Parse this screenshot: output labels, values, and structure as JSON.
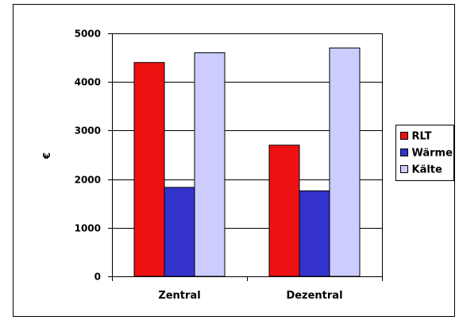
{
  "chart_data": {
    "type": "bar",
    "categories": [
      "Zentral",
      "Dezentral"
    ],
    "series": [
      {
        "name": "RLT",
        "values": [
          4400,
          2700
        ],
        "color": "#ee1111"
      },
      {
        "name": "Wärme",
        "values": [
          1830,
          1760
        ],
        "color": "#3333cc"
      },
      {
        "name": "Kälte",
        "values": [
          4600,
          4700
        ],
        "color": "#ccccff"
      }
    ],
    "title": "",
    "xlabel": "",
    "ylabel": "€",
    "ylim": [
      0,
      5000
    ],
    "yticks": [
      0,
      1000,
      2000,
      3000,
      4000,
      5000
    ],
    "grid": true,
    "legend": "right"
  }
}
